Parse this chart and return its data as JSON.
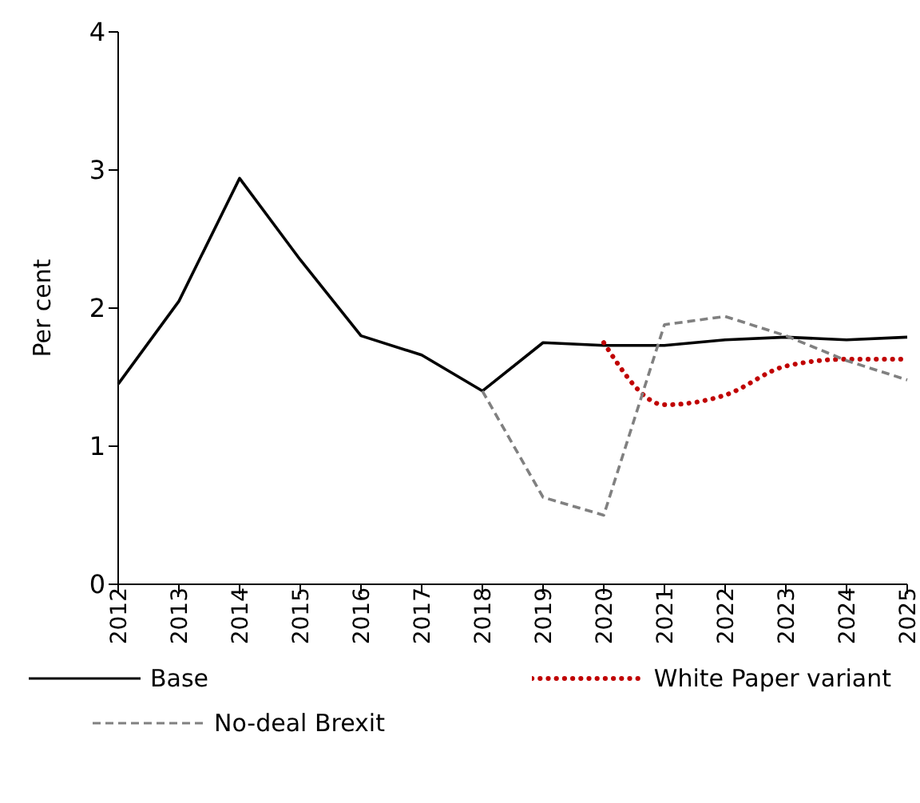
{
  "chart_data": {
    "type": "line",
    "ylabel": "Per cent",
    "categories": [
      "2012",
      "2013",
      "2014",
      "2015",
      "2016",
      "2017",
      "2018",
      "2019",
      "2020",
      "2021",
      "2022",
      "2023",
      "2024",
      "2025"
    ],
    "ylim": [
      0,
      4
    ],
    "yticks": [
      0,
      1,
      2,
      3,
      4
    ],
    "grid": false,
    "legend": "bottom",
    "marker": "none",
    "series": [
      {
        "name": "Base",
        "color": "#000000",
        "line_style": "solid",
        "values": [
          1.45,
          2.05,
          2.94,
          2.35,
          1.8,
          1.66,
          1.4,
          1.75,
          1.73,
          1.73,
          1.77,
          1.79,
          1.77,
          1.79
        ]
      },
      {
        "name": "White Paper variant",
        "color": "#c00000",
        "line_style": "dotted",
        "values": [
          null,
          null,
          null,
          null,
          null,
          null,
          null,
          null,
          1.75,
          1.3,
          1.37,
          1.58,
          1.63,
          1.63
        ]
      },
      {
        "name": "No-deal Brexit",
        "color": "#808080",
        "line_style": "dashed",
        "values": [
          null,
          null,
          null,
          null,
          null,
          null,
          1.4,
          0.63,
          0.5,
          1.88,
          1.94,
          1.8,
          1.62,
          1.48
        ]
      }
    ]
  }
}
